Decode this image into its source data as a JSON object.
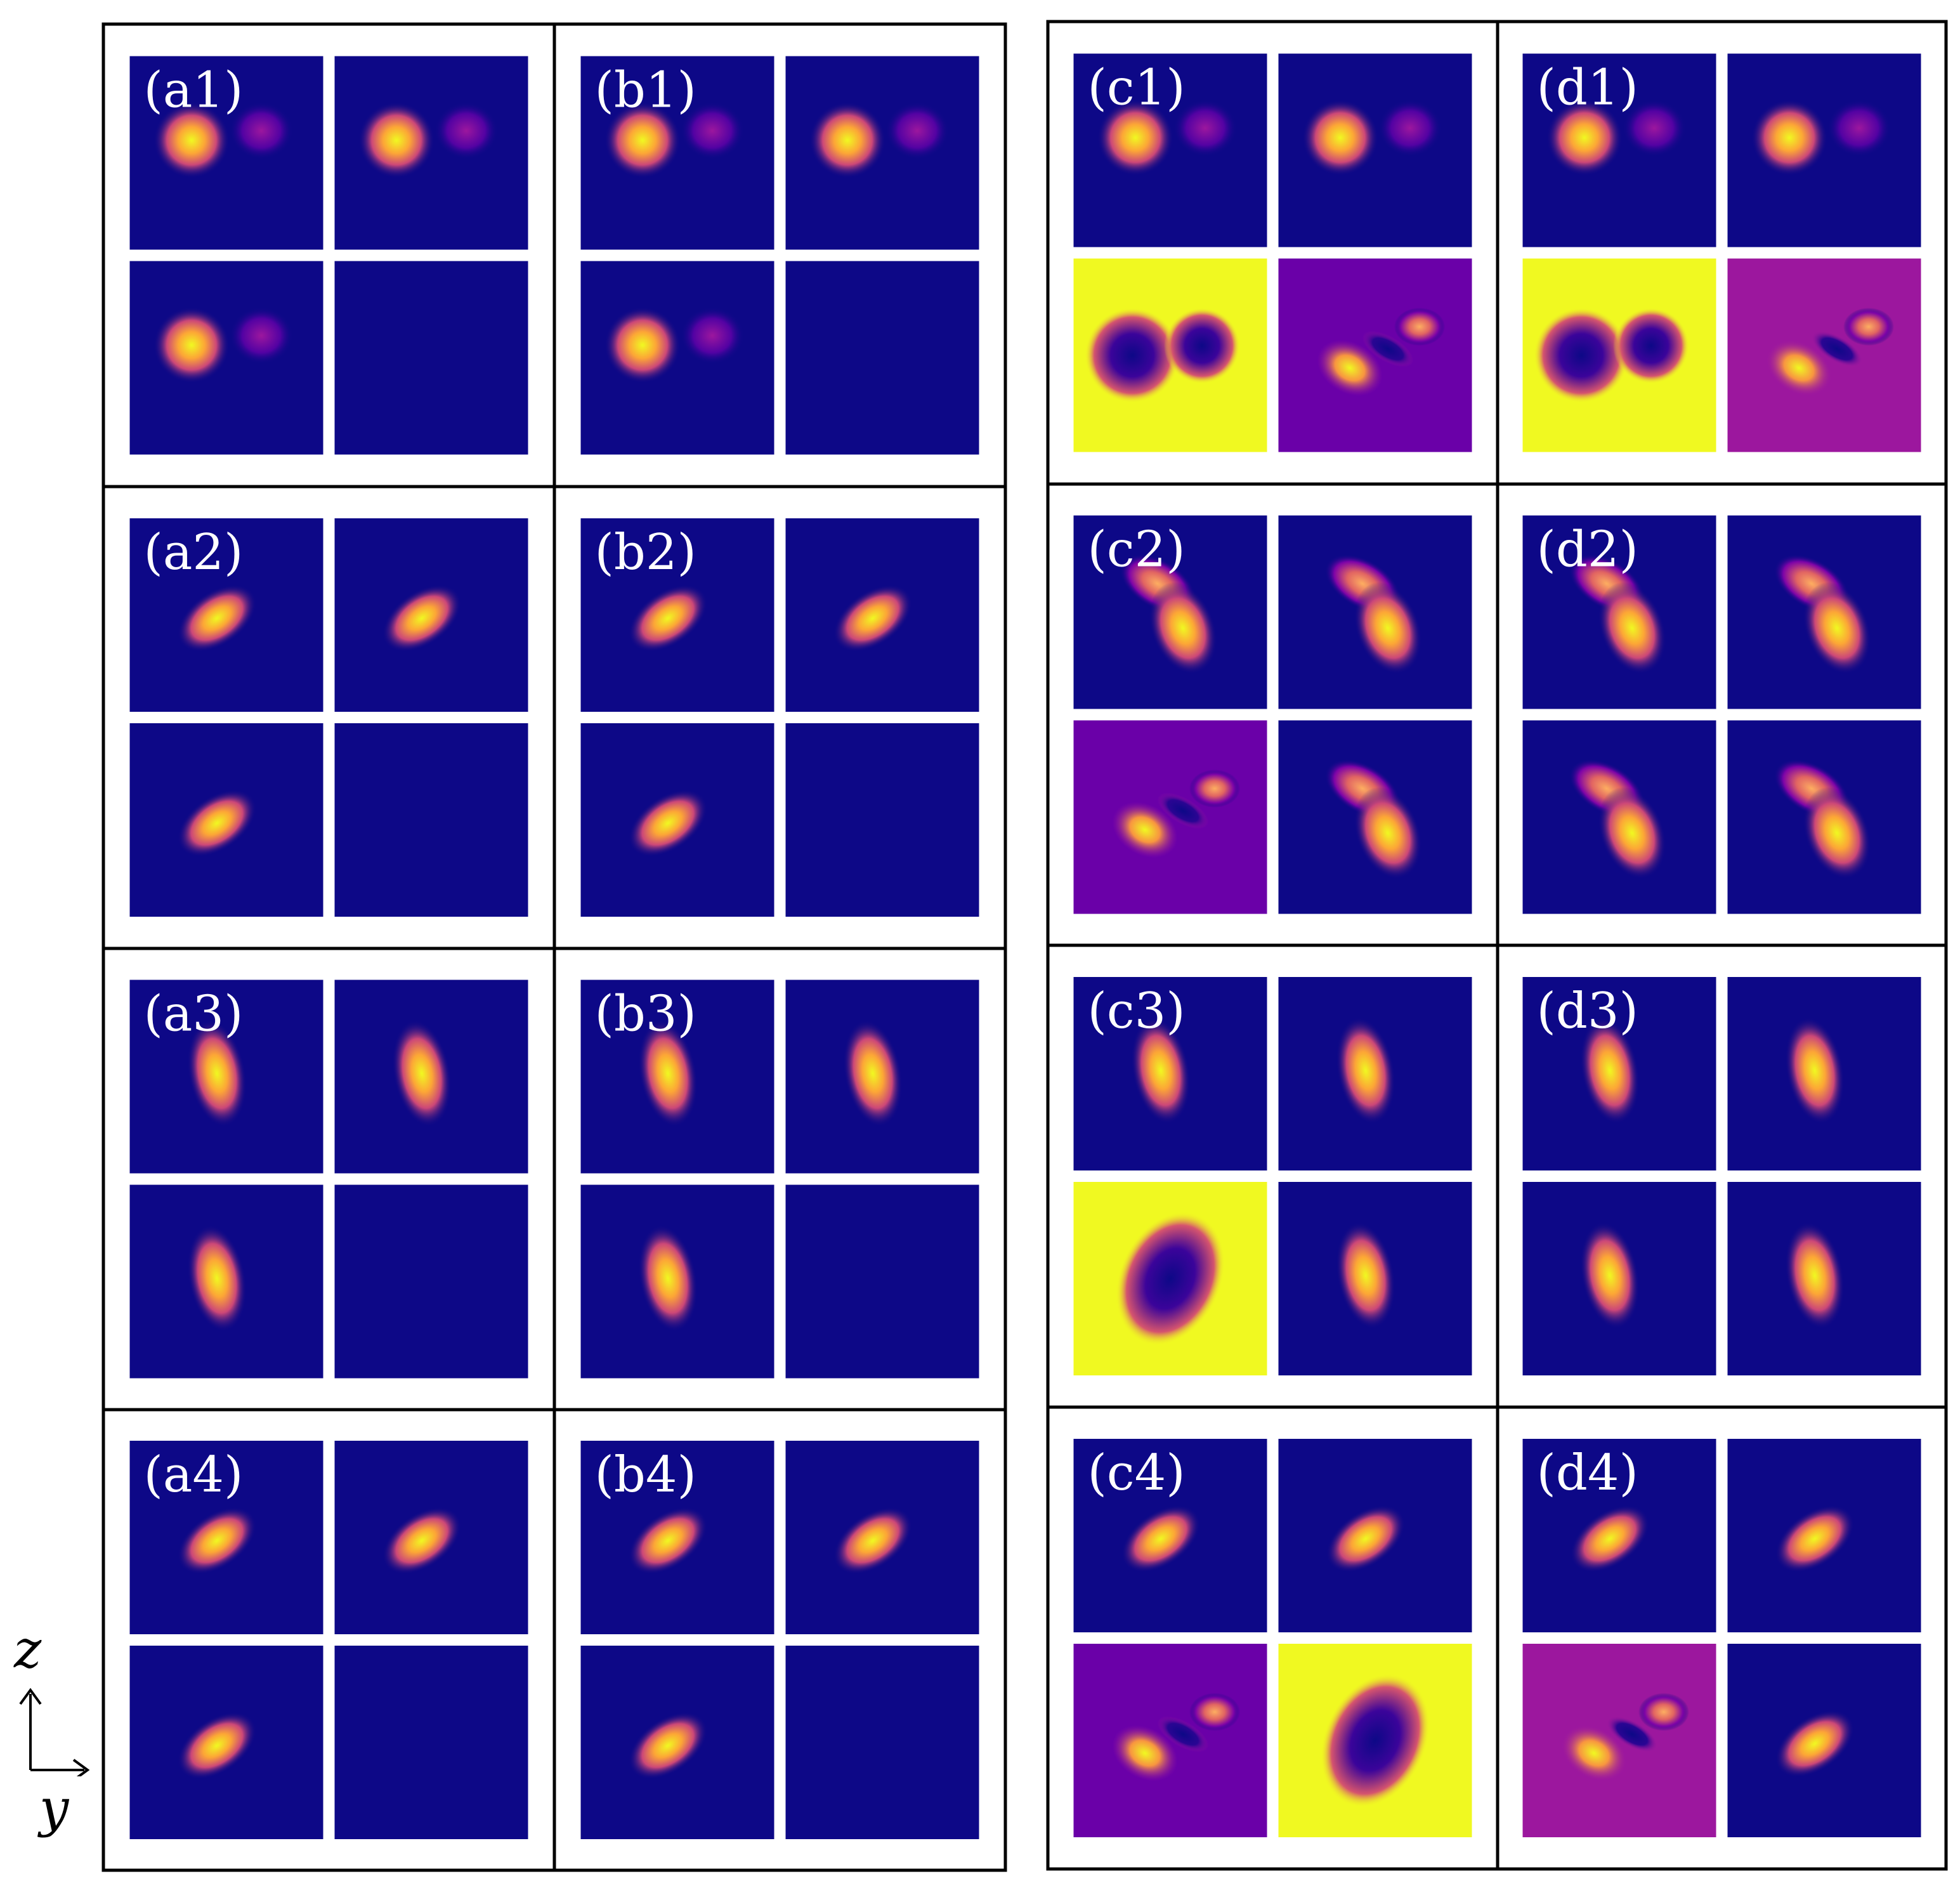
{
  "colors": {
    "background": "#0d0887",
    "mid": "#7e03a8",
    "bright": "#f89540",
    "peak": "#f0f921",
    "frame": "#000000",
    "label": "#ffffff"
  },
  "axes": {
    "vertical": "z",
    "horizontal": "y"
  },
  "groups": [
    {
      "id": "a",
      "rows": [
        {
          "label": "(a1)",
          "tiles": [
            "two-blobs",
            "two-blobs",
            "two-blobs",
            "empty"
          ]
        },
        {
          "label": "(a2)",
          "tiles": [
            "tilted-blob",
            "tilted-blob",
            "tilted-blob",
            "empty"
          ]
        },
        {
          "label": "(a3)",
          "tiles": [
            "vertical-blob",
            "vertical-blob",
            "vertical-blob",
            "empty"
          ]
        },
        {
          "label": "(a4)",
          "tiles": [
            "tilted-blob",
            "tilted-blob",
            "tilted-blob",
            "empty"
          ]
        }
      ]
    },
    {
      "id": "b",
      "rows": [
        {
          "label": "(b1)",
          "tiles": [
            "two-blobs",
            "two-blobs",
            "two-blobs",
            "empty"
          ]
        },
        {
          "label": "(b2)",
          "tiles": [
            "tilted-blob",
            "tilted-blob",
            "tilted-blob",
            "empty"
          ]
        },
        {
          "label": "(b3)",
          "tiles": [
            "vertical-blob",
            "vertical-blob",
            "vertical-blob",
            "empty"
          ]
        },
        {
          "label": "(b4)",
          "tiles": [
            "tilted-blob",
            "tilted-blob",
            "tilted-blob",
            "empty"
          ]
        }
      ]
    },
    {
      "id": "c",
      "rows": [
        {
          "label": "(c1)",
          "tiles": [
            "two-blobs",
            "two-blobs",
            "inverted-two-blobs",
            "phase-pattern"
          ]
        },
        {
          "label": "(c2)",
          "tiles": [
            "curved-blob",
            "curved-blob",
            "phase-pattern",
            "curved-blob"
          ]
        },
        {
          "label": "(c3)",
          "tiles": [
            "vertical-blob",
            "vertical-blob",
            "inverted-blob",
            "vertical-blob"
          ]
        },
        {
          "label": "(c4)",
          "tiles": [
            "tilted-blob",
            "tilted-blob",
            "phase-pattern",
            "inverted-blob"
          ]
        }
      ]
    },
    {
      "id": "d",
      "rows": [
        {
          "label": "(d1)",
          "tiles": [
            "two-blobs",
            "two-blobs",
            "inverted-two-blobs",
            "phase-pattern"
          ]
        },
        {
          "label": "(d2)",
          "tiles": [
            "curved-blob",
            "curved-blob",
            "curved-blob",
            "curved-blob"
          ]
        },
        {
          "label": "(d3)",
          "tiles": [
            "vertical-blob",
            "vertical-blob",
            "vertical-blob",
            "vertical-blob"
          ]
        },
        {
          "label": "(d4)",
          "tiles": [
            "tilted-blob",
            "tilted-blob",
            "phase-pattern",
            "tilted-blob"
          ]
        }
      ]
    }
  ]
}
